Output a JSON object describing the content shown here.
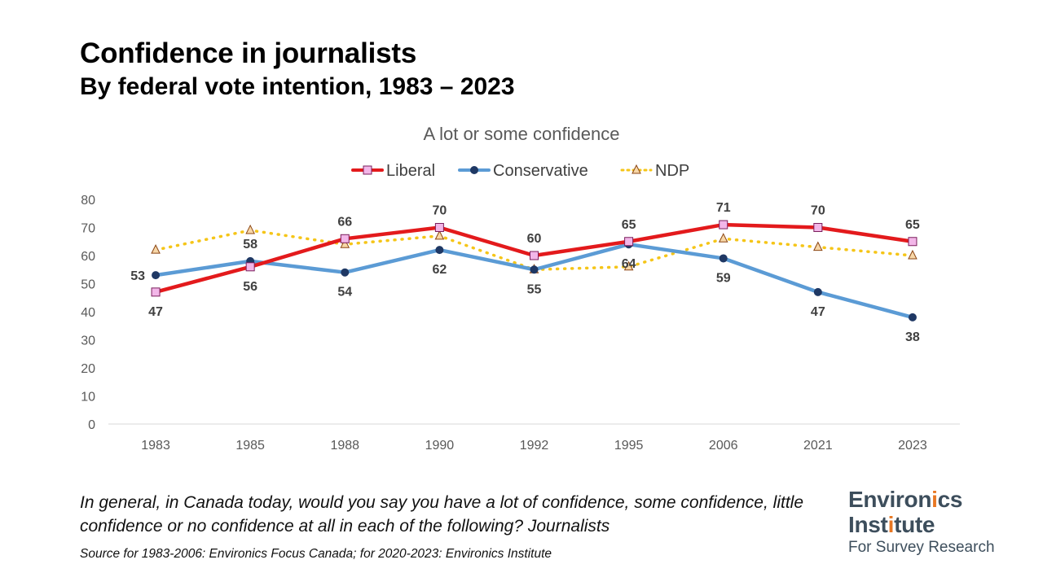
{
  "title": "Confidence in journalists",
  "subtitle": "By federal vote intention, 1983 – 2023",
  "question": "In general, in Canada today, would you say you have a lot of confidence, some confidence, little confidence or no confidence at all in each of the following? Journalists",
  "source": "Source for 1983-2006: Environics Focus Canada; for 2020-2023: Environics Institute",
  "logo": {
    "line1_a": "Environ",
    "line1_b": "i",
    "line1_c": "cs",
    "line2_a": "Inst",
    "line2_b": "i",
    "line2_c": "tute",
    "line3": "For Survey Research",
    "accent_color": "#e87722",
    "text_color": "#3d4e5c"
  },
  "chart_data": {
    "type": "line",
    "title": "A lot or some confidence",
    "categories": [
      "1983",
      "1985",
      "1988",
      "1990",
      "1992",
      "1995",
      "2006",
      "2021",
      "2023"
    ],
    "ylim": [
      0,
      80
    ],
    "yticks": [
      0,
      10,
      20,
      30,
      40,
      50,
      60,
      70,
      80
    ],
    "grid": false,
    "legend": "top-center",
    "series": [
      {
        "name": "Liberal",
        "values": [
          47,
          56,
          66,
          70,
          60,
          65,
          71,
          70,
          65
        ],
        "color": "#e31a1c",
        "marker": "square",
        "marker_fill": "#f2b6e8",
        "style": "solid",
        "labels": [
          {
            "text": "47",
            "pos": "below"
          },
          {
            "text": "56",
            "pos": "below"
          },
          {
            "text": "66",
            "pos": "above"
          },
          {
            "text": "70",
            "pos": "above"
          },
          {
            "text": "60",
            "pos": "above"
          },
          {
            "text": "65",
            "pos": "above"
          },
          {
            "text": "71",
            "pos": "above"
          },
          {
            "text": "70",
            "pos": "above"
          },
          {
            "text": "65",
            "pos": "above"
          }
        ]
      },
      {
        "name": "Conservative",
        "values": [
          53,
          58,
          54,
          62,
          55,
          64,
          59,
          47,
          38
        ],
        "color": "#5b9bd5",
        "marker": "circle",
        "marker_fill": "#1f3864",
        "style": "solid",
        "labels": [
          {
            "text": "53",
            "pos": "left"
          },
          {
            "text": "58",
            "pos": "above"
          },
          {
            "text": "54",
            "pos": "below"
          },
          {
            "text": "62",
            "pos": "below"
          },
          {
            "text": "55",
            "pos": "below"
          },
          {
            "text": "64",
            "pos": "below"
          },
          {
            "text": "59",
            "pos": "below"
          },
          {
            "text": "47",
            "pos": "below"
          },
          {
            "text": "38",
            "pos": "below"
          }
        ]
      },
      {
        "name": "NDP",
        "values": [
          62,
          69,
          64,
          67,
          55,
          56,
          66,
          63,
          60
        ],
        "color": "#f5c518",
        "marker": "triangle",
        "marker_fill": "#f7d7a8",
        "marker_stroke": "#8b4513",
        "style": "dotted"
      }
    ]
  }
}
